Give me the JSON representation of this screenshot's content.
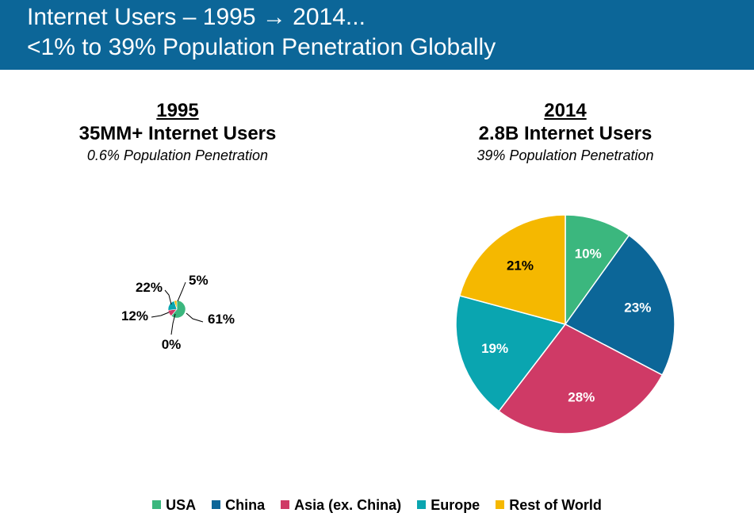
{
  "header": {
    "line1": "Internet Users – 1995 → 2014...",
    "line2": "<1% to 39% Population Penetration Globally"
  },
  "colors": {
    "header_bg": "#0c6698",
    "USA": "#3bb77e",
    "China": "#0c6698",
    "Asia (ex. China)": "#cf3a66",
    "Europe": "#0aa5b0",
    "Rest of World": "#f5b800"
  },
  "legend": [
    "USA",
    "China",
    "Asia (ex. China)",
    "Europe",
    "Rest of World"
  ],
  "chart_data": [
    {
      "type": "pie",
      "year": "1995",
      "title": "35MM+ Internet Users",
      "subtitle": "0.6% Population Penetration",
      "categories": [
        "USA",
        "China",
        "Asia (ex. China)",
        "Europe",
        "Rest of World"
      ],
      "values": [
        61,
        0,
        12,
        22,
        5
      ],
      "labels": [
        "61%",
        "0%",
        "12%",
        "22%",
        "5%"
      ]
    },
    {
      "type": "pie",
      "year": "2014",
      "title": "2.8B Internet Users",
      "subtitle": "39% Population Penetration",
      "categories": [
        "USA",
        "China",
        "Asia (ex. China)",
        "Europe",
        "Rest of World"
      ],
      "values": [
        10,
        23,
        28,
        19,
        21
      ],
      "labels": [
        "10%",
        "23%",
        "28%",
        "19%",
        "21%"
      ]
    }
  ]
}
